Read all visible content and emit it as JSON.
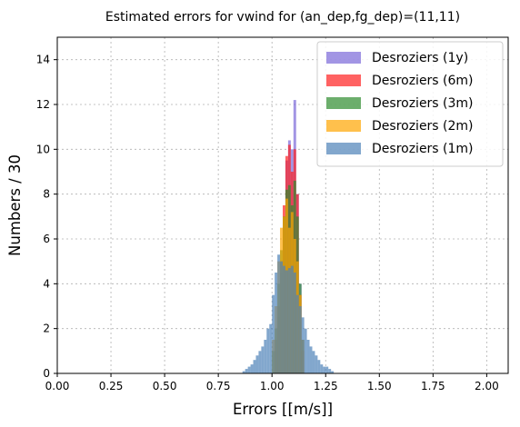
{
  "chart_data": {
    "type": "bar",
    "title": "Estimated errors for vwind for (an_dep,fg_dep)=(11,11)",
    "xlabel": "Errors [[m/s]]",
    "ylabel": "Numbers / 30",
    "xlim": [
      0.0,
      2.1
    ],
    "ylim": [
      0,
      15
    ],
    "xticks": [
      "0.00",
      "0.25",
      "0.50",
      "0.75",
      "1.00",
      "1.25",
      "1.50",
      "1.75",
      "2.00"
    ],
    "yticks": [
      "0",
      "2",
      "4",
      "6",
      "8",
      "10",
      "12",
      "14"
    ],
    "grid": true,
    "legend_position": "top-right",
    "bin_width": 0.0125,
    "series": [
      {
        "name": "Desroziers (1y)",
        "color": "#7b68d8",
        "x": [
          1.0125,
          1.025,
          1.0375,
          1.05,
          1.0625,
          1.075,
          1.0875,
          1.1,
          1.1125,
          1.125,
          1.1375
        ],
        "values": [
          1.0,
          2.5,
          4.5,
          7.0,
          9.5,
          10.4,
          10.0,
          12.2,
          8.0,
          4.0,
          1.5
        ]
      },
      {
        "name": "Desroziers (6m)",
        "color": "#ff2020",
        "x": [
          1.0125,
          1.025,
          1.0375,
          1.05,
          1.0625,
          1.075,
          1.0875,
          1.1,
          1.1125,
          1.125,
          1.1375
        ],
        "values": [
          1.5,
          3.0,
          5.0,
          7.5,
          9.7,
          10.2,
          9.0,
          10.0,
          8.0,
          3.5,
          1.0
        ]
      },
      {
        "name": "Desroziers (3m)",
        "color": "#2e8b2e",
        "x": [
          1.0,
          1.0125,
          1.025,
          1.0375,
          1.05,
          1.0625,
          1.075,
          1.0875,
          1.1,
          1.1125,
          1.125,
          1.1375
        ],
        "values": [
          1.0,
          2.0,
          4.0,
          5.5,
          7.0,
          8.2,
          8.4,
          7.5,
          8.6,
          7.0,
          4.0,
          1.5
        ]
      },
      {
        "name": "Desroziers (2m)",
        "color": "#ffa500",
        "x": [
          1.0,
          1.0125,
          1.025,
          1.0375,
          1.05,
          1.0625,
          1.075,
          1.0875,
          1.1,
          1.1125,
          1.125,
          1.1375
        ],
        "values": [
          1.5,
          3.0,
          5.0,
          6.5,
          7.0,
          7.8,
          6.5,
          7.2,
          6.0,
          5.0,
          3.5,
          1.5
        ]
      },
      {
        "name": "Desroziers (1m)",
        "color": "#4d82b8",
        "x": [
          0.8625,
          0.875,
          0.8875,
          0.9,
          0.9125,
          0.925,
          0.9375,
          0.95,
          0.9625,
          0.975,
          0.9875,
          1.0,
          1.0125,
          1.025,
          1.0375,
          1.05,
          1.0625,
          1.075,
          1.0875,
          1.1,
          1.1125,
          1.125,
          1.1375,
          1.15,
          1.1625,
          1.175,
          1.1875,
          1.2,
          1.2125,
          1.225,
          1.2375,
          1.25,
          1.2625,
          1.275
        ],
        "values": [
          0.1,
          0.2,
          0.3,
          0.4,
          0.6,
          0.8,
          1.0,
          1.2,
          1.5,
          2.0,
          2.2,
          3.5,
          4.5,
          5.3,
          5.0,
          4.8,
          4.6,
          4.7,
          4.8,
          4.5,
          3.5,
          3.0,
          2.5,
          2.0,
          1.5,
          1.2,
          1.0,
          0.8,
          0.6,
          0.4,
          0.3,
          0.3,
          0.2,
          0.1
        ]
      }
    ]
  }
}
